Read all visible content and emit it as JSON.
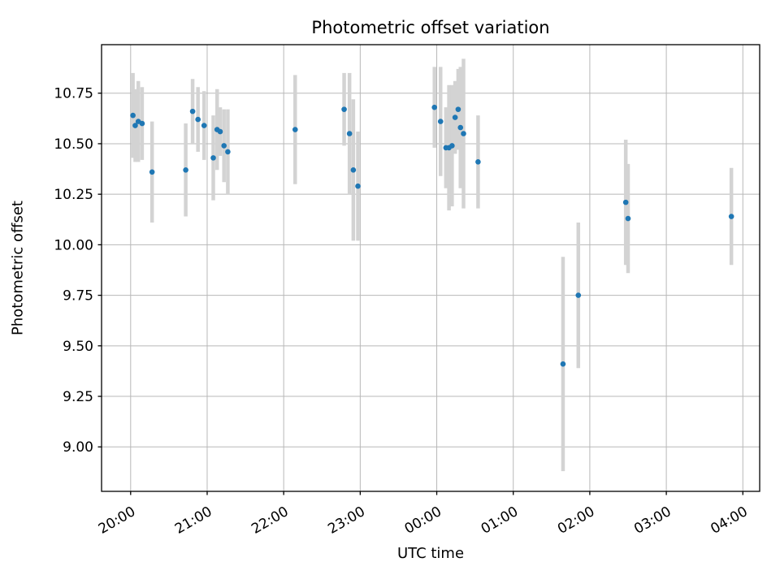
{
  "chart_data": {
    "type": "scatter",
    "title": "Photometric offset variation",
    "xlabel": "UTC time",
    "ylabel": "Photometric offset",
    "grid": true,
    "legend": "none",
    "xlim": [
      19.62,
      28.22
    ],
    "ylim": [
      8.78,
      10.99
    ],
    "x_ticks": [
      {
        "value": 20,
        "label": "20:00"
      },
      {
        "value": 21,
        "label": "21:00"
      },
      {
        "value": 22,
        "label": "22:00"
      },
      {
        "value": 23,
        "label": "23:00"
      },
      {
        "value": 24,
        "label": "00:00"
      },
      {
        "value": 25,
        "label": "01:00"
      },
      {
        "value": 26,
        "label": "02:00"
      },
      {
        "value": 27,
        "label": "03:00"
      },
      {
        "value": 28,
        "label": "04:00"
      }
    ],
    "y_ticks": [
      {
        "value": 9.0,
        "label": "9.00"
      },
      {
        "value": 9.25,
        "label": "9.25"
      },
      {
        "value": 9.5,
        "label": "9.50"
      },
      {
        "value": 9.75,
        "label": "9.75"
      },
      {
        "value": 10.0,
        "label": "10.00"
      },
      {
        "value": 10.25,
        "label": "10.25"
      },
      {
        "value": 10.5,
        "label": "10.50"
      },
      {
        "value": 10.75,
        "label": "10.75"
      }
    ],
    "points": [
      {
        "t": 20.03,
        "y": 10.64,
        "e": 0.21
      },
      {
        "t": 20.06,
        "y": 10.59,
        "e": 0.18
      },
      {
        "t": 20.1,
        "y": 10.61,
        "e": 0.2
      },
      {
        "t": 20.15,
        "y": 10.6,
        "e": 0.18
      },
      {
        "t": 20.28,
        "y": 10.36,
        "e": 0.25
      },
      {
        "t": 20.72,
        "y": 10.37,
        "e": 0.23
      },
      {
        "t": 20.81,
        "y": 10.66,
        "e": 0.16
      },
      {
        "t": 20.88,
        "y": 10.62,
        "e": 0.16
      },
      {
        "t": 20.96,
        "y": 10.59,
        "e": 0.17
      },
      {
        "t": 21.08,
        "y": 10.43,
        "e": 0.21
      },
      {
        "t": 21.13,
        "y": 10.57,
        "e": 0.2
      },
      {
        "t": 21.17,
        "y": 10.56,
        "e": 0.12
      },
      {
        "t": 21.22,
        "y": 10.49,
        "e": 0.18
      },
      {
        "t": 21.27,
        "y": 10.46,
        "e": 0.21
      },
      {
        "t": 22.15,
        "y": 10.57,
        "e": 0.27
      },
      {
        "t": 22.79,
        "y": 10.67,
        "e": 0.18
      },
      {
        "t": 22.86,
        "y": 10.55,
        "e": 0.3
      },
      {
        "t": 22.91,
        "y": 10.37,
        "e": 0.35
      },
      {
        "t": 22.97,
        "y": 10.29,
        "e": 0.27
      },
      {
        "t": 23.97,
        "y": 10.68,
        "e": 0.2
      },
      {
        "t": 24.05,
        "y": 10.61,
        "e": 0.27
      },
      {
        "t": 24.12,
        "y": 10.48,
        "e": 0.2
      },
      {
        "t": 24.16,
        "y": 10.48,
        "e": 0.31
      },
      {
        "t": 24.2,
        "y": 10.49,
        "e": 0.3
      },
      {
        "t": 24.24,
        "y": 10.63,
        "e": 0.18
      },
      {
        "t": 24.28,
        "y": 10.67,
        "e": 0.2
      },
      {
        "t": 24.31,
        "y": 10.58,
        "e": 0.3
      },
      {
        "t": 24.35,
        "y": 10.55,
        "e": 0.37
      },
      {
        "t": 24.54,
        "y": 10.41,
        "e": 0.23
      },
      {
        "t": 25.65,
        "y": 9.41,
        "e": 0.53
      },
      {
        "t": 25.85,
        "y": 9.75,
        "e": 0.36
      },
      {
        "t": 26.47,
        "y": 10.21,
        "e": 0.31
      },
      {
        "t": 26.5,
        "y": 10.13,
        "e": 0.27
      },
      {
        "t": 27.85,
        "y": 10.14,
        "e": 0.24
      }
    ],
    "colors": {
      "marker": "#1f77b4",
      "error_bar": "#d3d3d3",
      "grid": "#b8b8b8",
      "spine": "#000000"
    }
  }
}
